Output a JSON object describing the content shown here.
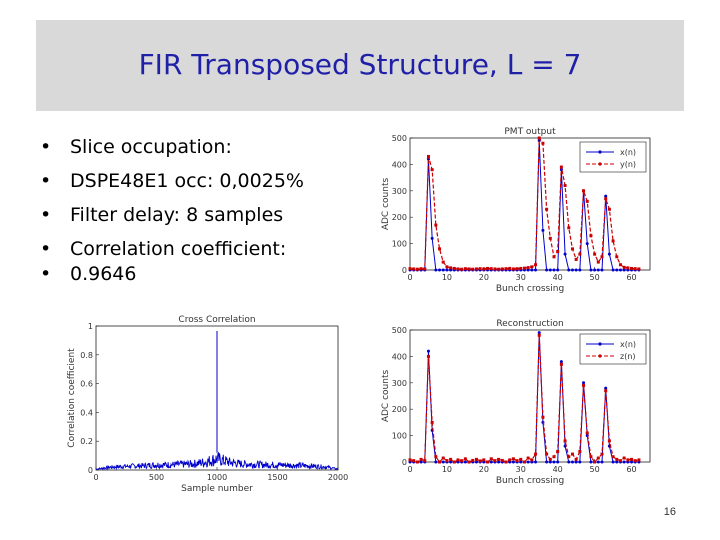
{
  "slide": {
    "title": "FIR Transposed Structure, L = 7",
    "bullets": [
      "Slice occupation:",
      "DSPE48E1 occ: 0,0025%",
      "Filter delay: 8 samples",
      "Correlation coefficient:",
      "0.9646"
    ],
    "page_number": "16"
  },
  "colors": {
    "title": "#1f1fa8",
    "series_blue": "#0000cc",
    "series_red": "#cc0000",
    "band": "#d9d9d9"
  },
  "chart_data": [
    {
      "type": "line",
      "title": "PMT output",
      "xlabel": "Bunch crossing",
      "ylabel": "ADC counts",
      "xlim": [
        0,
        65
      ],
      "ylim": [
        0,
        500
      ],
      "xticks": [
        0,
        10,
        20,
        30,
        40,
        50,
        60
      ],
      "yticks": [
        0,
        100,
        200,
        300,
        400,
        500
      ],
      "legend_position": "top-right",
      "series": [
        {
          "name": "x(n)",
          "color": "#0000cc",
          "values": [
            0,
            0,
            0,
            0,
            0,
            420,
            120,
            0,
            0,
            0,
            0,
            0,
            0,
            0,
            0,
            0,
            0,
            0,
            0,
            0,
            0,
            0,
            0,
            0,
            0,
            0,
            0,
            0,
            0,
            0,
            0,
            0,
            0,
            0,
            0,
            490,
            150,
            0,
            0,
            0,
            0,
            380,
            60,
            0,
            0,
            0,
            0,
            300,
            100,
            0,
            0,
            0,
            0,
            280,
            60,
            0,
            0,
            0,
            0,
            0,
            0,
            0,
            0
          ]
        },
        {
          "name": "y(n)",
          "color": "#cc0000",
          "values": [
            5,
            4,
            3,
            5,
            4,
            430,
            380,
            170,
            80,
            30,
            12,
            8,
            6,
            4,
            3,
            5,
            4,
            3,
            4,
            5,
            4,
            6,
            5,
            4,
            3,
            4,
            5,
            6,
            4,
            5,
            6,
            7,
            9,
            12,
            20,
            500,
            480,
            230,
            120,
            50,
            70,
            390,
            320,
            160,
            80,
            40,
            60,
            300,
            260,
            130,
            60,
            30,
            50,
            270,
            230,
            110,
            50,
            20,
            10,
            8,
            6,
            5,
            4
          ]
        }
      ]
    },
    {
      "type": "line",
      "title": "Cross Correlation",
      "xlabel": "Sample number",
      "ylabel": "Correlation coefficient",
      "xlim": [
        0,
        2000
      ],
      "ylim": [
        0,
        1
      ],
      "xticks": [
        0,
        500,
        1000,
        1500,
        2000
      ],
      "yticks": [
        0,
        0.2,
        0.4,
        0.6,
        0.8,
        1
      ],
      "series": [
        {
          "name": "",
          "color": "#0000cc",
          "peak": {
            "x": 1000,
            "y": 0.965
          },
          "envelope": [
            [
              0,
              0.01
            ],
            [
              100,
              0.03
            ],
            [
              200,
              0.04
            ],
            [
              300,
              0.045
            ],
            [
              400,
              0.05
            ],
            [
              500,
              0.06
            ],
            [
              600,
              0.06
            ],
            [
              700,
              0.065
            ],
            [
              800,
              0.07
            ],
            [
              900,
              0.09
            ],
            [
              950,
              0.11
            ],
            [
              1000,
              0.13
            ],
            [
              1050,
              0.11
            ],
            [
              1100,
              0.09
            ],
            [
              1200,
              0.07
            ],
            [
              1300,
              0.065
            ],
            [
              1400,
              0.06
            ],
            [
              1500,
              0.06
            ],
            [
              1600,
              0.055
            ],
            [
              1700,
              0.05
            ],
            [
              1800,
              0.045
            ],
            [
              1900,
              0.035
            ],
            [
              2000,
              0.01
            ]
          ]
        }
      ]
    },
    {
      "type": "line",
      "title": "Reconstruction",
      "xlabel": "Bunch crossing",
      "ylabel": "ADC counts",
      "xlim": [
        0,
        65
      ],
      "ylim": [
        0,
        500
      ],
      "xticks": [
        0,
        10,
        20,
        30,
        40,
        50,
        60
      ],
      "yticks": [
        0,
        100,
        200,
        300,
        400,
        500
      ],
      "legend_position": "top-right",
      "series": [
        {
          "name": "x(n)",
          "color": "#0000cc",
          "values": [
            0,
            0,
            0,
            0,
            0,
            420,
            120,
            0,
            0,
            0,
            0,
            0,
            0,
            0,
            0,
            0,
            0,
            0,
            0,
            0,
            0,
            0,
            0,
            0,
            0,
            0,
            0,
            0,
            0,
            0,
            0,
            0,
            0,
            0,
            0,
            490,
            150,
            0,
            0,
            0,
            0,
            380,
            60,
            0,
            0,
            0,
            0,
            300,
            100,
            0,
            0,
            0,
            0,
            280,
            60,
            0,
            0,
            0,
            0,
            0,
            0,
            0,
            0
          ]
        },
        {
          "name": "z(n)",
          "color": "#cc0000",
          "values": [
            8,
            5,
            0,
            10,
            5,
            400,
            150,
            20,
            0,
            15,
            5,
            10,
            0,
            8,
            5,
            12,
            0,
            6,
            10,
            4,
            8,
            0,
            12,
            5,
            10,
            6,
            0,
            8,
            12,
            5,
            10,
            0,
            15,
            8,
            30,
            480,
            170,
            30,
            10,
            20,
            40,
            370,
            80,
            20,
            30,
            10,
            40,
            290,
            110,
            20,
            0,
            15,
            30,
            270,
            80,
            20,
            10,
            5,
            15,
            8,
            10,
            5,
            8
          ]
        }
      ]
    }
  ]
}
